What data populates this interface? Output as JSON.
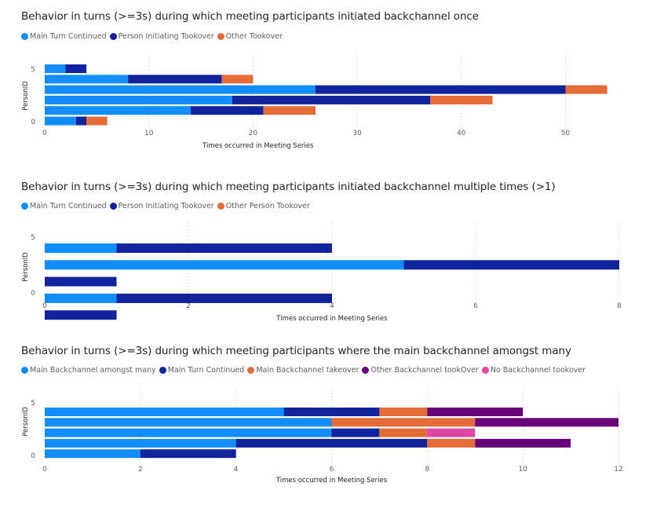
{
  "chart_data": [
    {
      "type": "bar",
      "orientation": "horizontal",
      "stacked": true,
      "title": "Behavior in turns (>=3s) during which meeting participants initiated backchannel once",
      "xlabel": "Times occurred in Meeting Series",
      "ylabel": "PersonID",
      "xlim": [
        0,
        55
      ],
      "xticks": [
        0,
        10,
        20,
        30,
        40,
        50
      ],
      "ytick_labels": [
        "5",
        "0"
      ],
      "grid": "vertical-dotted",
      "legend_position": "top-left",
      "categories": [
        0,
        1,
        2,
        3,
        4,
        5
      ],
      "series": [
        {
          "name": "Main Turn Continued",
          "color": "#118dff",
          "values": [
            3,
            14,
            18,
            26,
            8,
            2
          ]
        },
        {
          "name": "Person Initiating Tookover",
          "color": "#12239e",
          "values": [
            1,
            7,
            19,
            24,
            9,
            2
          ]
        },
        {
          "name": "Other Tookover",
          "color": "#e66c37",
          "values": [
            2,
            5,
            6,
            4,
            3,
            0
          ]
        }
      ]
    },
    {
      "type": "bar",
      "orientation": "horizontal",
      "stacked": true,
      "title": "Behavior in turns (>=3s) during which meeting participants initiated backchannel multiple times (>1)",
      "xlabel": "Times occurred in Meeting Series",
      "ylabel": "PersonID",
      "xlim": [
        0,
        8
      ],
      "xticks": [
        0,
        2,
        4,
        6,
        8
      ],
      "ytick_labels": [
        "5",
        "0"
      ],
      "grid": "vertical-dotted",
      "legend_position": "top-left",
      "categories": [
        0,
        1,
        2,
        3,
        4,
        5
      ],
      "series": [
        {
          "name": "Main Turn Continued",
          "color": "#118dff",
          "values": [
            0,
            1,
            0,
            5,
            1,
            0
          ]
        },
        {
          "name": "Person Initiating Tookover",
          "color": "#12239e",
          "values": [
            1,
            3,
            1,
            3,
            3,
            0
          ]
        },
        {
          "name": "Other Person Tookover",
          "color": "#e66c37",
          "values": [
            0,
            0,
            0,
            0,
            0,
            0
          ]
        }
      ]
    },
    {
      "type": "bar",
      "orientation": "horizontal",
      "stacked": true,
      "title": "Behavior in turns (>=3s) during which meeting participants where the main backchannel amongst many",
      "xlabel": "Times occurred in Meeting Series",
      "ylabel": "PersonID",
      "xlim": [
        0,
        12
      ],
      "xticks": [
        0,
        2,
        4,
        6,
        8,
        10,
        12
      ],
      "ytick_labels": [
        "5",
        "0"
      ],
      "grid": "vertical-dotted",
      "legend_position": "top-left",
      "categories": [
        0,
        1,
        2,
        3,
        4,
        5
      ],
      "series": [
        {
          "name": "Main Backchannel amongst many",
          "color": "#118dff",
          "values": [
            2,
            4,
            6,
            6,
            5,
            0
          ]
        },
        {
          "name": "Main Turn Continued",
          "color": "#12239e",
          "values": [
            2,
            4,
            1,
            0,
            2,
            0
          ]
        },
        {
          "name": "Main Backchannel takeover",
          "color": "#e66c37",
          "values": [
            0,
            1,
            1,
            3,
            1,
            0
          ]
        },
        {
          "name": "Other Backchannel tookOver",
          "color": "#6b007b",
          "values": [
            0,
            2,
            0,
            3,
            2,
            0
          ]
        },
        {
          "name": "No Backchannel tookover",
          "color": "#e044a7",
          "values": [
            0,
            0,
            1,
            0,
            0,
            0
          ]
        }
      ]
    }
  ]
}
